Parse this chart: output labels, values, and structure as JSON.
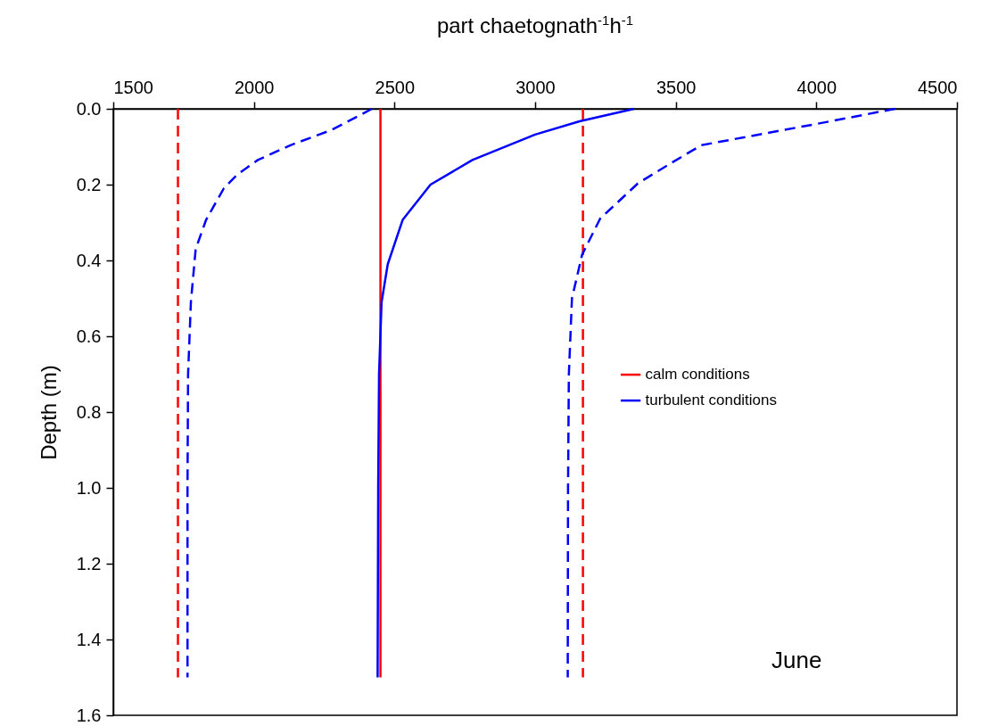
{
  "chart_data": {
    "type": "line",
    "xlabel": "part chaetognath$^{-1}$h$^{-1}$",
    "ylabel": "Depth (m)",
    "xlim": [
      1500,
      4500
    ],
    "xticks": [
      1500,
      2000,
      2500,
      3000,
      3500,
      4000,
      4500
    ],
    "ylim": [
      1.6,
      0
    ],
    "yticks": [
      {
        "value": 0,
        "label": "0.0"
      },
      0.2,
      0.4,
      0.6,
      0.8,
      {
        "value": 1,
        "label": "1.0"
      },
      1.2,
      1.4,
      1.6
    ],
    "legend": "right",
    "grid": false,
    "annotations": [
      "June"
    ],
    "series": [
      {
        "color": "#ff0000",
        "line_style": "dashed",
        "x": [
          1730,
          1730
        ],
        "values": [
          0,
          1.5
        ]
      },
      {
        "name": "calm conditions",
        "color": "#ff0000",
        "line_style": "solid",
        "x": [
          2450,
          2450
        ],
        "values": [
          0,
          1.5
        ]
      },
      {
        "color": "#ff0000",
        "line_style": "dashed",
        "x": [
          3170,
          3170
        ],
        "values": [
          0,
          1.5
        ]
      },
      {
        "color": "#0000ff",
        "line_style": "dashed",
        "x": [
          2420,
          2276,
          2130,
          2014,
          1940,
          1893,
          1830,
          1793,
          1776,
          1766,
          1764,
          1764
        ],
        "values": [
          0,
          0.056,
          0.096,
          0.135,
          0.174,
          0.21,
          0.293,
          0.37,
          0.51,
          0.7,
          1.0,
          1.5
        ]
      },
      {
        "name": "turbulent conditions",
        "color": "#0000ff",
        "line_style": "solid",
        "x": [
          3352,
          3158,
          3000,
          2777,
          2628,
          2529,
          2476,
          2454,
          2445,
          2442,
          2440
        ],
        "values": [
          0,
          0.033,
          0.068,
          0.135,
          0.2,
          0.293,
          0.41,
          0.51,
          0.7,
          1.0,
          1.5
        ]
      },
      {
        "color": "#0000ff",
        "line_style": "dashed",
        "x": [
          4280,
          4000,
          3591,
          3484,
          3365,
          3231,
          3167,
          3131,
          3120,
          3117,
          3116
        ],
        "values": [
          0,
          0.04,
          0.096,
          0.143,
          0.197,
          0.29,
          0.385,
          0.5,
          0.7,
          1.0,
          1.5
        ]
      }
    ]
  }
}
